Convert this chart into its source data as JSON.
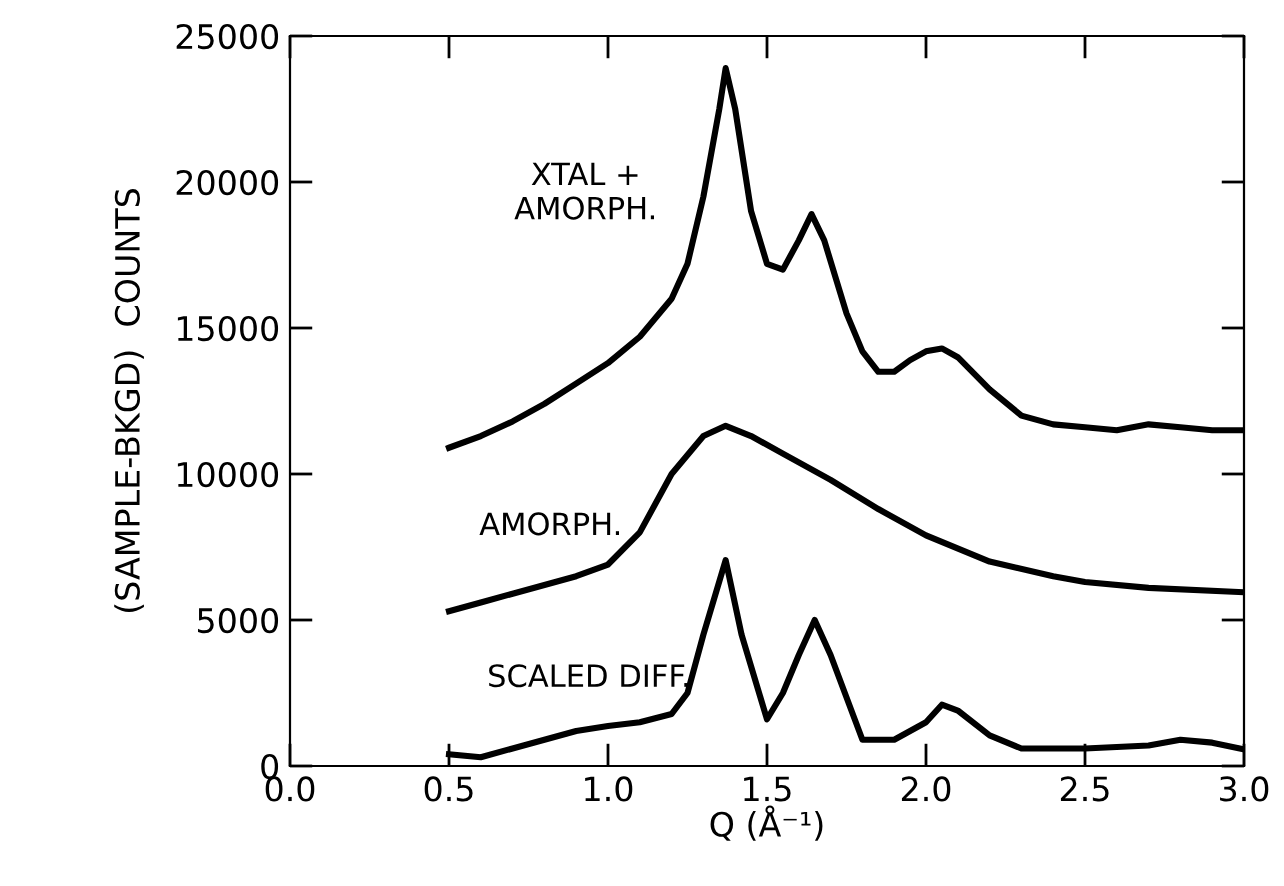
{
  "chart_data": {
    "type": "line",
    "xlabel": "Q (Å⁻¹)",
    "ylabel": "(SAMPLE-BKGD)  COUNTS",
    "xlim": [
      0.0,
      3.0
    ],
    "ylim": [
      0,
      25000
    ],
    "xticks": [
      {
        "value": 0.0,
        "label": "0.0"
      },
      {
        "value": 0.5,
        "label": "0.5"
      },
      {
        "value": 1.0,
        "label": "1.0"
      },
      {
        "value": 1.5,
        "label": "1.5"
      },
      {
        "value": 2.0,
        "label": "2.0"
      },
      {
        "value": 2.5,
        "label": "2.5"
      },
      {
        "value": 3.0,
        "label": "3.0"
      }
    ],
    "yticks": [
      0,
      5000,
      10000,
      15000,
      20000,
      25000
    ],
    "grid": false,
    "legend": false,
    "marker": "none",
    "line_style": "solid",
    "series": [
      {
        "name": "XTAL +\nAMORPH.",
        "color": "#000000",
        "x": [
          0.5,
          0.6,
          0.7,
          0.8,
          0.9,
          1.0,
          1.1,
          1.2,
          1.25,
          1.3,
          1.35,
          1.37,
          1.4,
          1.45,
          1.5,
          1.55,
          1.6,
          1.64,
          1.68,
          1.75,
          1.8,
          1.85,
          1.9,
          1.95,
          2.0,
          2.05,
          2.1,
          2.2,
          2.3,
          2.4,
          2.5,
          2.6,
          2.7,
          2.8,
          2.9,
          3.0
        ],
        "values": [
          10900,
          11300,
          11800,
          12400,
          13100,
          13800,
          14700,
          16000,
          17200,
          19500,
          22500,
          23900,
          22500,
          19000,
          17200,
          17000,
          18000,
          18900,
          18000,
          15500,
          14200,
          13500,
          13500,
          13900,
          14200,
          14300,
          14000,
          12900,
          12000,
          11700,
          11600,
          11500,
          11700,
          11600,
          11500,
          11500
        ]
      },
      {
        "name": "AMORPH.",
        "color": "#000000",
        "x": [
          0.5,
          0.6,
          0.7,
          0.8,
          0.9,
          1.0,
          1.1,
          1.2,
          1.3,
          1.37,
          1.45,
          1.55,
          1.7,
          1.85,
          2.0,
          2.2,
          2.4,
          2.5,
          2.7,
          3.0
        ],
        "values": [
          5300,
          5600,
          5900,
          6200,
          6500,
          6900,
          8000,
          10000,
          11300,
          11650,
          11300,
          10700,
          9800,
          8800,
          7900,
          7000,
          6500,
          6300,
          6100,
          5950
        ]
      },
      {
        "name": "SCALED DIFF.",
        "color": "#000000",
        "x": [
          0.5,
          0.6,
          0.7,
          0.8,
          0.9,
          1.0,
          1.1,
          1.2,
          1.25,
          1.3,
          1.37,
          1.42,
          1.5,
          1.55,
          1.6,
          1.65,
          1.7,
          1.8,
          1.9,
          2.0,
          2.05,
          2.1,
          2.2,
          2.3,
          2.5,
          2.7,
          2.8,
          2.9,
          3.0
        ],
        "values": [
          400,
          300,
          600,
          900,
          1200,
          1370,
          1500,
          1780,
          2500,
          4500,
          7050,
          4500,
          1600,
          2500,
          3800,
          5000,
          3800,
          900,
          900,
          1500,
          2100,
          1900,
          1050,
          600,
          600,
          700,
          900,
          800,
          570
        ]
      }
    ]
  }
}
